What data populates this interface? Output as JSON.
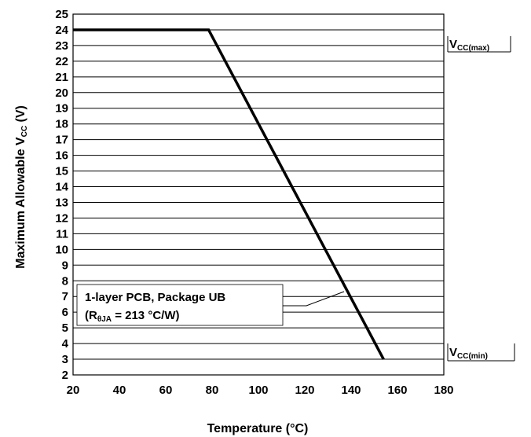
{
  "chart_data": {
    "type": "line",
    "xlabel": "Temperature (°C)",
    "ylabel": {
      "main": "Maximum Allowable  V",
      "sub": "CC",
      "unit": " (V)"
    },
    "xlim": [
      20,
      180
    ],
    "ylim": [
      2,
      25
    ],
    "xticks": [
      20,
      40,
      60,
      80,
      100,
      120,
      140,
      160,
      180
    ],
    "yticks": [
      2,
      3,
      4,
      5,
      6,
      7,
      8,
      9,
      10,
      11,
      12,
      13,
      14,
      15,
      16,
      17,
      18,
      19,
      20,
      21,
      22,
      23,
      24,
      25
    ],
    "grid": true,
    "series": [
      {
        "x": [
          20,
          78.5,
          154
        ],
        "y": [
          24,
          24,
          3
        ]
      }
    ],
    "annotations": {
      "vcc_max": {
        "main": "V",
        "sub": "CC(max)",
        "y": 24
      },
      "vcc_min": {
        "main": "V",
        "sub": "CC(min)",
        "y": 3
      },
      "pcb_box": {
        "line1": "1-layer PCB, Package UB",
        "line2_prefix": "(R",
        "line2_sub": "θJA",
        "line2_suffix": " = 213 °C/W)"
      }
    }
  }
}
